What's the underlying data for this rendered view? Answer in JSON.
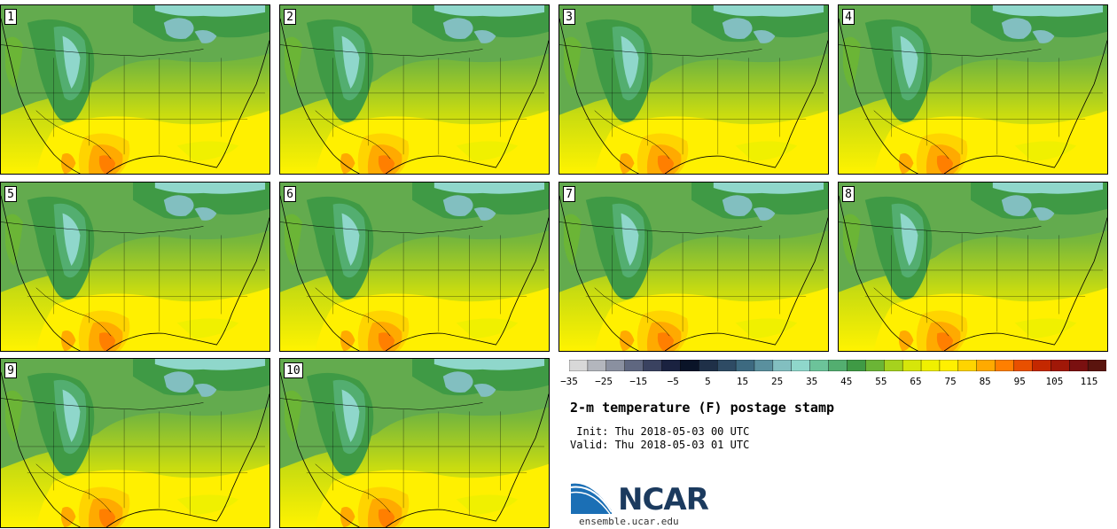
{
  "panels": [
    {
      "label": "1"
    },
    {
      "label": "2"
    },
    {
      "label": "3"
    },
    {
      "label": "4"
    },
    {
      "label": "5"
    },
    {
      "label": "6"
    },
    {
      "label": "7"
    },
    {
      "label": "8"
    },
    {
      "label": "9"
    },
    {
      "label": "10"
    }
  ],
  "colorbar": {
    "colors": [
      "#d8d8d8",
      "#b3b6bd",
      "#8a90a0",
      "#5f6780",
      "#3a4260",
      "#1a2240",
      "#0a1428",
      "#1f3048",
      "#2e4b64",
      "#3d6a80",
      "#5a909e",
      "#82bfc0",
      "#8fd7cb",
      "#6cc39a",
      "#53ae70",
      "#3f9a45",
      "#6bb536",
      "#a6d21e",
      "#d6e60a",
      "#f0f000",
      "#fff000",
      "#ffd400",
      "#ffaa00",
      "#ff7f00",
      "#e85000",
      "#c42800",
      "#a01808",
      "#7a1010",
      "#5a140e"
    ],
    "tick_labels": [
      "−35",
      "−25",
      "−15",
      "−5",
      "5",
      "15",
      "25",
      "35",
      "45",
      "55",
      "65",
      "75",
      "85",
      "95",
      "105",
      "115"
    ],
    "range": [
      -35,
      120
    ]
  },
  "title": "2-m temperature (F) postage stamp",
  "init_line": " Init: Thu 2018-05-03 00 UTC",
  "valid_line": "Valid: Thu 2018-05-03 01 UTC",
  "logo_text": "NCAR",
  "url": "ensemble.ucar.edu"
}
